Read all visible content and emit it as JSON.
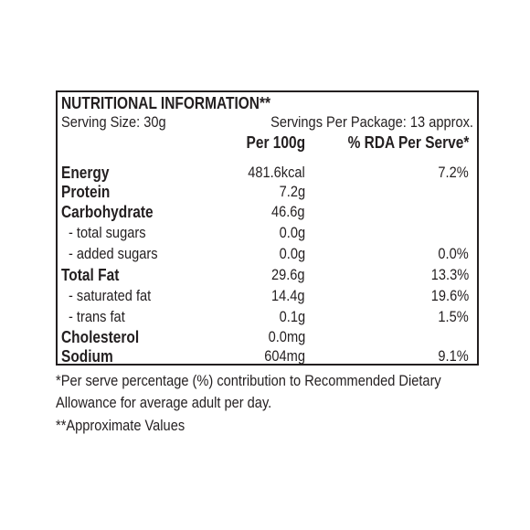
{
  "title": "NUTRITIONAL INFORMATION**",
  "serving_size": "Serving Size: 30g",
  "servings_per_package": "Servings Per Package: 13 approx.",
  "columns": {
    "per_100g": "Per 100g",
    "rda_per_serve": "% RDA Per Serve*"
  },
  "rows": [
    {
      "name": "Energy",
      "per_100g": "481.6kcal",
      "rda": "7.2%"
    },
    {
      "name": "Protein",
      "per_100g": "7.2g",
      "rda": ""
    },
    {
      "name": "Carbohydrate",
      "per_100g": "46.6g",
      "rda": ""
    },
    {
      "name": "- total sugars",
      "per_100g": "0.0g",
      "rda": ""
    },
    {
      "name": "- added sugars",
      "per_100g": "0.0g",
      "rda": "0.0%"
    },
    {
      "name": "Total Fat",
      "per_100g": "29.6g",
      "rda": "13.3%"
    },
    {
      "name": "- saturated fat",
      "per_100g": "14.4g",
      "rda": "19.6%"
    },
    {
      "name": "- trans fat",
      "per_100g": "0.1g",
      "rda": "1.5%"
    },
    {
      "name": "Cholesterol",
      "per_100g": "0.0mg",
      "rda": ""
    },
    {
      "name": "Sodium",
      "per_100g": "604mg",
      "rda": "9.1%"
    }
  ],
  "footnotes": [
    "*Per serve percentage (%) contribution to Recommended  Dietary",
    "Allowance for average adult per day.",
    "**Approximate Values"
  ]
}
